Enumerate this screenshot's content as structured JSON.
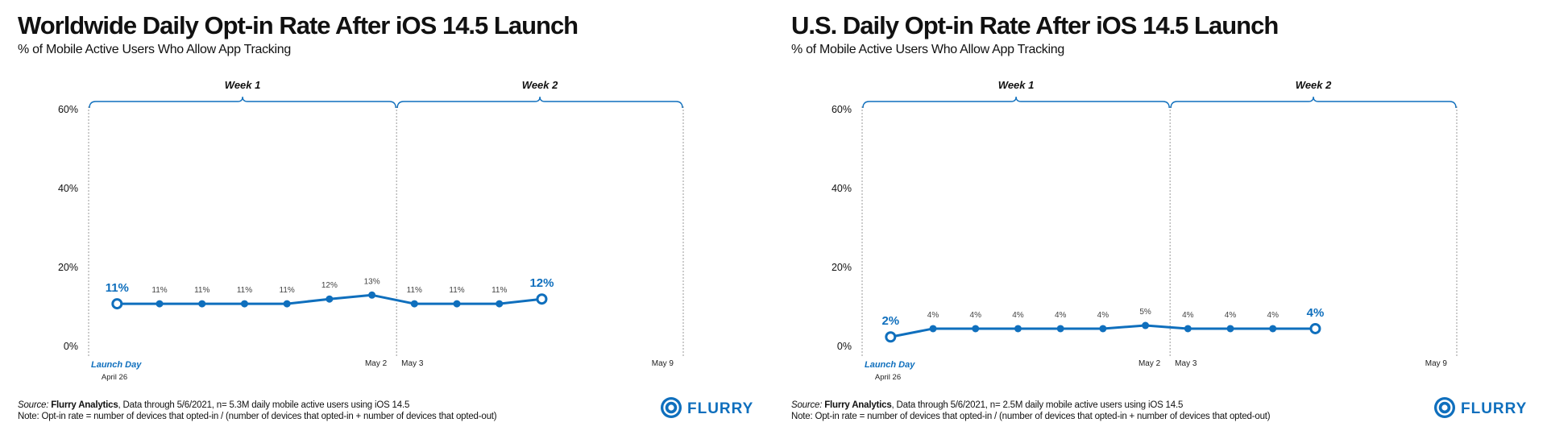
{
  "charts": [
    {
      "title": "Worldwide Daily Opt-in Rate After iOS 14.5 Launch",
      "subtitle": "% of Mobile Active Users Who Allow App Tracking",
      "footer": {
        "source_label": "Source:",
        "source_name": "Flurry Analytics",
        "source_detail": ", Data through 5/6/2021, n= 5.3M daily mobile active users using iOS 14.5",
        "note": "Note: Opt-in rate = number of devices that opted-in / (number of devices that opted-in + number of devices that opted-out)"
      },
      "logo_text": "FLURRY"
    },
    {
      "title": "U.S. Daily Opt-in Rate After iOS 14.5 Launch",
      "subtitle": "% of Mobile Active Users Who Allow App Tracking",
      "footer": {
        "source_label": "Source:",
        "source_name": "Flurry Analytics",
        "source_detail": ", Data through 5/6/2021, n= 2.5M daily mobile active users using iOS 14.5",
        "note": "Note: Opt-in rate = number of devices that opted-in / (number of devices that opted-in + number of devices that opted-out)"
      },
      "logo_text": "FLURRY"
    }
  ],
  "chart_data": [
    {
      "type": "line",
      "title": "Worldwide Daily Opt-in Rate After iOS 14.5 Launch",
      "x_start_label": "Launch Day",
      "x_start_sublabel": "April 26",
      "x_tick_labels": [
        "May 2",
        "May 3",
        "May 9"
      ],
      "week_labels": [
        "Week 1",
        "Week 2"
      ],
      "ylim": [
        0,
        60
      ],
      "yticks": [
        "0%",
        "20%",
        "40%",
        "60%"
      ],
      "yticks_values": [
        0,
        20,
        40,
        60
      ],
      "values": [
        11,
        11,
        11,
        11,
        11,
        12,
        13,
        11,
        11,
        11,
        12
      ],
      "value_labels": [
        "11%",
        "11%",
        "11%",
        "11%",
        "11%",
        "12%",
        "13%",
        "11%",
        "11%",
        "11%",
        "12%"
      ],
      "plotted_values": [
        10.8,
        10.8,
        10.8,
        10.8,
        10.8,
        12,
        13,
        10.8,
        10.8,
        10.8,
        12
      ],
      "total_days": 14,
      "color": "#0f6fbd"
    },
    {
      "type": "line",
      "title": "U.S. Daily Opt-in Rate After iOS 14.5 Launch",
      "x_start_label": "Launch Day",
      "x_start_sublabel": "April 26",
      "x_tick_labels": [
        "May 2",
        "May 3",
        "May 9"
      ],
      "week_labels": [
        "Week 1",
        "Week 2"
      ],
      "ylim": [
        0,
        60
      ],
      "yticks": [
        "0%",
        "20%",
        "40%",
        "60%"
      ],
      "yticks_values": [
        0,
        20,
        40,
        60
      ],
      "values": [
        2,
        4,
        4,
        4,
        4,
        4,
        5,
        4,
        4,
        4,
        4
      ],
      "value_labels": [
        "2%",
        "4%",
        "4%",
        "4%",
        "4%",
        "4%",
        "5%",
        "4%",
        "4%",
        "4%",
        "4%"
      ],
      "plotted_values": [
        2.4,
        4.5,
        4.5,
        4.5,
        4.5,
        4.5,
        5.3,
        4.5,
        4.5,
        4.5,
        4.5
      ],
      "total_days": 14,
      "color": "#0f6fbd"
    }
  ]
}
